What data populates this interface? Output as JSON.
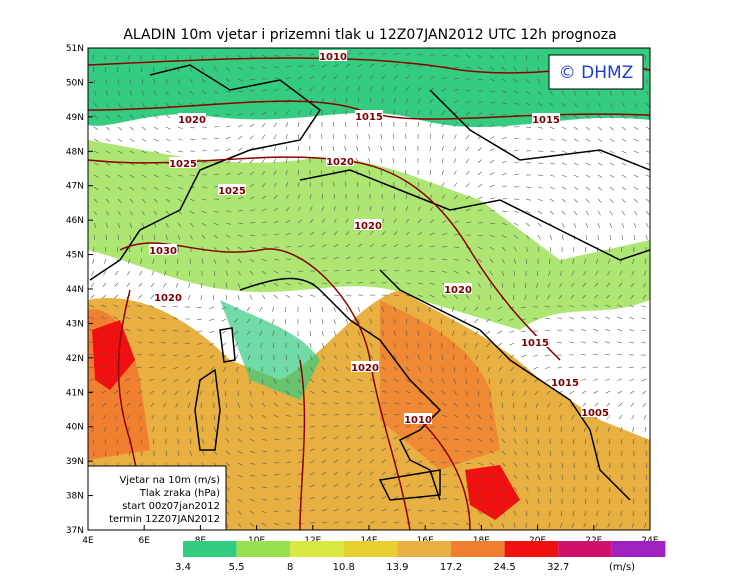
{
  "title": "ALADIN 10m vjetar i prizemni tlak u 12Z07JAN2012 UTC 12h prognoza",
  "logo": "© DHMZ",
  "lat_labels": [
    "51N",
    "50N",
    "49N",
    "48N",
    "47N",
    "46N",
    "45N",
    "44N",
    "43N",
    "42N",
    "41N",
    "40N",
    "39N",
    "38N",
    "37N"
  ],
  "lon_labels": [
    "4E",
    "6E",
    "8E",
    "10E",
    "12E",
    "14E",
    "16E",
    "18E",
    "20E",
    "22E",
    "24E"
  ],
  "legend": [
    "Vjetar na 10m (m/s)",
    "Tlak zraka (hPa)",
    "start 00z07jan2012",
    "termin 12Z07JAN2012"
  ],
  "colorbar": {
    "levels": [
      3.4,
      5.5,
      8,
      10.8,
      13.9,
      17.2,
      24.5,
      32.7
    ],
    "unit": "(m/s)",
    "colors": [
      "#33cc80",
      "#99e050",
      "#d8e840",
      "#e8d030",
      "#e8b040",
      "#f08030",
      "#f01010",
      "#d0106a",
      "#a020c0"
    ]
  },
  "isobars": [
    1010,
    1020,
    1015,
    1015,
    1025,
    1020,
    1025,
    1020,
    1030,
    1020,
    1020,
    1015,
    1020,
    1015,
    1010,
    1005
  ]
}
